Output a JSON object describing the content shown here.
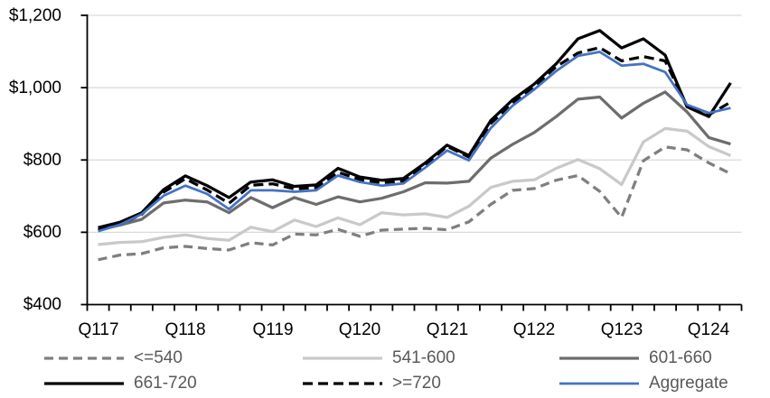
{
  "chart_data": {
    "type": "line",
    "title": "",
    "xlabel": "",
    "ylabel": "",
    "grid": true,
    "legend_position": "bottom",
    "y_axis": {
      "min": 400,
      "max": 1200,
      "tick_interval": 200,
      "tick_labels_top_to_bottom": [
        "$1,200",
        "$1,000",
        "$800",
        "$600",
        "$400"
      ]
    },
    "x_axis": {
      "tick_labels": [
        "Q117",
        "Q118",
        "Q119",
        "Q120",
        "Q121",
        "Q122",
        "Q123",
        "Q124"
      ],
      "quarters": [
        "Q117",
        "Q217",
        "Q317",
        "Q417",
        "Q118",
        "Q218",
        "Q318",
        "Q418",
        "Q119",
        "Q219",
        "Q319",
        "Q419",
        "Q120",
        "Q220",
        "Q320",
        "Q420",
        "Q121",
        "Q221",
        "Q321",
        "Q421",
        "Q122",
        "Q222",
        "Q322",
        "Q422",
        "Q123",
        "Q223",
        "Q323",
        "Q423",
        "Q124",
        "Q224"
      ]
    },
    "colors": {
      "grid": "#d9d9d9",
      "axis": "#000000",
      "axis_text": "#000000",
      "legend_text": "#595959"
    },
    "series": [
      {
        "id": "le-540",
        "label": "<=540",
        "color": "#7f7f7f",
        "dash": "10 6",
        "width": 3.25,
        "values": [
          524,
          537,
          541,
          557,
          561,
          555,
          551,
          571,
          565,
          595,
          593,
          608,
          589,
          606,
          609,
          611,
          607,
          629,
          677,
          716,
          721,
          744,
          757,
          713,
          641,
          798,
          836,
          828,
          792,
          762
        ]
      },
      {
        "id": "s541-600",
        "label": "541-600",
        "color": "#c9c9c9",
        "dash": "",
        "width": 3.25,
        "values": [
          566,
          572,
          574,
          586,
          593,
          583,
          578,
          614,
          602,
          634,
          616,
          640,
          621,
          654,
          648,
          651,
          641,
          672,
          724,
          741,
          745,
          777,
          801,
          776,
          732,
          850,
          887,
          880,
          837,
          812
        ]
      },
      {
        "id": "s601-660",
        "label": "601-660",
        "color": "#6d6d6d",
        "dash": "",
        "width": 3.25,
        "values": [
          606,
          620,
          636,
          681,
          689,
          684,
          654,
          696,
          668,
          696,
          677,
          698,
          684,
          694,
          712,
          737,
          736,
          741,
          805,
          843,
          876,
          920,
          968,
          974,
          916,
          957,
          988,
          933,
          862,
          844
        ]
      },
      {
        "id": "s661-720",
        "label": "661-720",
        "color": "#000000",
        "dash": "",
        "width": 3.25,
        "values": [
          613,
          628,
          654,
          718,
          756,
          729,
          696,
          739,
          745,
          727,
          731,
          777,
          753,
          744,
          749,
          792,
          841,
          812,
          909,
          966,
          1010,
          1066,
          1135,
          1158,
          1110,
          1135,
          1090,
          947,
          920,
          1013
        ]
      },
      {
        "id": "ge-720",
        "label": ">=720",
        "color": "#000000",
        "dash": "11 6",
        "width": 3.25,
        "values": [
          606,
          622,
          649,
          711,
          748,
          717,
          680,
          730,
          734,
          720,
          724,
          766,
          746,
          737,
          742,
          786,
          838,
          808,
          901,
          957,
          1003,
          1058,
          1096,
          1111,
          1074,
          1086,
          1074,
          949,
          925,
          960
        ]
      },
      {
        "id": "aggregate",
        "label": "Aggregate",
        "color": "#4472c4",
        "dash": "",
        "width": 2.75,
        "values": [
          603,
          621,
          650,
          701,
          729,
          706,
          664,
          716,
          716,
          712,
          716,
          757,
          739,
          729,
          735,
          779,
          826,
          799,
          888,
          950,
          995,
          1046,
          1088,
          1099,
          1061,
          1066,
          1043,
          953,
          930,
          944
        ]
      }
    ]
  }
}
